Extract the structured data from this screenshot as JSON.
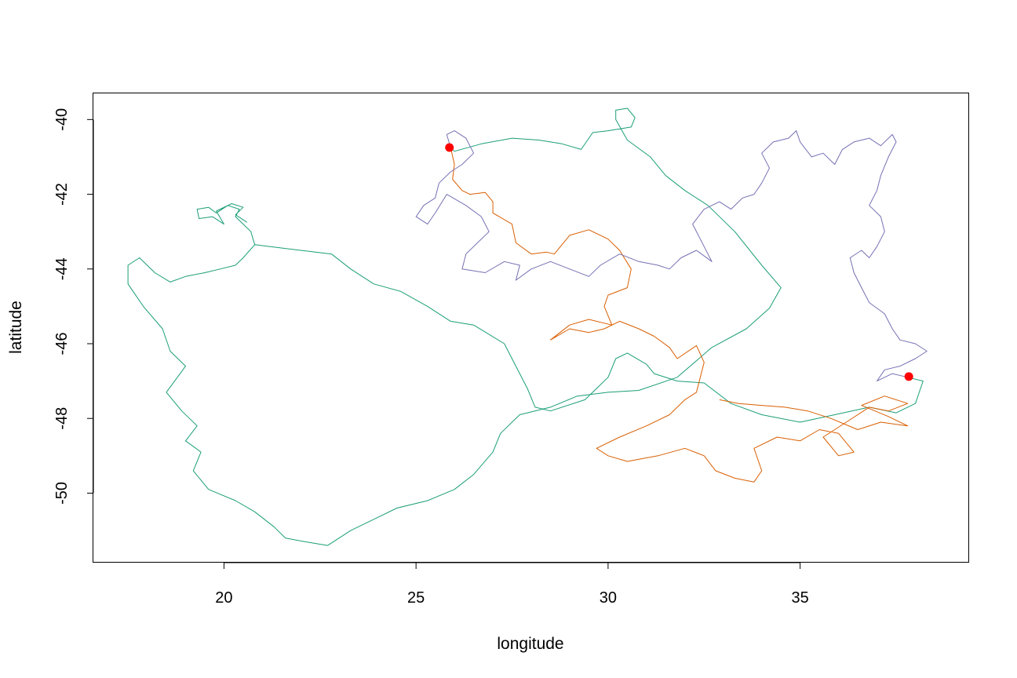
{
  "chart_data": {
    "type": "line",
    "title": "",
    "xlabel": "longitude",
    "ylabel": "latitude",
    "xlim": [
      16.6,
      39.4
    ],
    "ylim": [
      -51.86,
      -39.3
    ],
    "x_ticks": [
      20,
      25,
      30,
      35
    ],
    "y_ticks": [
      -40,
      -42,
      -44,
      -46,
      -48,
      -50
    ],
    "grid": false,
    "legend": "none",
    "colors": {
      "green": "#1b9e77",
      "orange": "#d95f02",
      "purple": "#7570b3",
      "points": "#ff0000"
    },
    "series": [
      {
        "color": "#1b9e77",
        "values": [
          [
            37.8,
            -46.9
          ],
          [
            38.2,
            -47.0
          ],
          [
            38.0,
            -47.6
          ],
          [
            37.5,
            -47.85
          ],
          [
            36.8,
            -47.7
          ],
          [
            35.9,
            -47.9
          ],
          [
            35.0,
            -48.1
          ],
          [
            34.0,
            -47.9
          ],
          [
            33.2,
            -47.6
          ],
          [
            32.5,
            -47.05
          ],
          [
            31.8,
            -47.0
          ],
          [
            31.2,
            -46.8
          ],
          [
            31.0,
            -46.55
          ],
          [
            30.5,
            -46.25
          ],
          [
            30.2,
            -46.4
          ],
          [
            30.0,
            -46.9
          ],
          [
            29.4,
            -47.5
          ],
          [
            28.5,
            -47.8
          ],
          [
            28.1,
            -47.7
          ],
          [
            27.9,
            -47.2
          ],
          [
            27.6,
            -46.6
          ],
          [
            27.3,
            -46.0
          ],
          [
            26.5,
            -45.5
          ],
          [
            25.9,
            -45.4
          ],
          [
            25.3,
            -45.0
          ],
          [
            24.6,
            -44.6
          ],
          [
            23.9,
            -44.4
          ],
          [
            23.3,
            -44.0
          ],
          [
            22.8,
            -43.6
          ],
          [
            22.0,
            -43.5
          ],
          [
            21.2,
            -43.4
          ],
          [
            20.8,
            -43.35
          ],
          [
            20.5,
            -43.7
          ],
          [
            20.3,
            -43.9
          ],
          [
            19.9,
            -44.0
          ],
          [
            19.5,
            -44.1
          ],
          [
            19.0,
            -44.2
          ],
          [
            18.6,
            -44.35
          ],
          [
            18.2,
            -44.1
          ],
          [
            17.8,
            -43.7
          ],
          [
            17.5,
            -43.9
          ],
          [
            17.5,
            -44.4
          ],
          [
            17.9,
            -45.0
          ],
          [
            18.4,
            -45.6
          ],
          [
            18.6,
            -46.2
          ],
          [
            19.0,
            -46.6
          ],
          [
            18.5,
            -47.3
          ],
          [
            18.9,
            -47.8
          ],
          [
            19.3,
            -48.2
          ],
          [
            19.0,
            -48.6
          ],
          [
            19.4,
            -48.9
          ],
          [
            19.2,
            -49.4
          ],
          [
            19.6,
            -49.9
          ],
          [
            20.3,
            -50.2
          ],
          [
            20.8,
            -50.5
          ],
          [
            21.3,
            -50.9
          ],
          [
            21.6,
            -51.2
          ],
          [
            22.1,
            -51.3
          ],
          [
            22.7,
            -51.4
          ],
          [
            23.3,
            -51.0
          ],
          [
            23.9,
            -50.7
          ],
          [
            24.5,
            -50.4
          ],
          [
            25.3,
            -50.2
          ],
          [
            26.0,
            -49.9
          ],
          [
            26.5,
            -49.5
          ],
          [
            27.0,
            -48.9
          ],
          [
            27.2,
            -48.4
          ],
          [
            27.7,
            -47.9
          ],
          [
            28.5,
            -47.7
          ],
          [
            29.2,
            -47.4
          ],
          [
            30.0,
            -47.3
          ],
          [
            30.8,
            -47.25
          ],
          [
            31.8,
            -46.9
          ],
          [
            32.7,
            -46.1
          ],
          [
            33.6,
            -45.6
          ],
          [
            34.2,
            -45.05
          ],
          [
            34.5,
            -44.5
          ],
          [
            34.0,
            -43.9
          ],
          [
            33.3,
            -43.0
          ],
          [
            32.6,
            -42.3
          ],
          [
            32.0,
            -41.9
          ],
          [
            31.5,
            -41.5
          ],
          [
            31.1,
            -41.0
          ],
          [
            30.5,
            -40.55
          ],
          [
            30.2,
            -40.0
          ],
          [
            30.2,
            -39.75
          ],
          [
            30.5,
            -39.7
          ],
          [
            30.7,
            -39.95
          ],
          [
            30.6,
            -40.2
          ],
          [
            30.0,
            -40.3
          ],
          [
            29.6,
            -40.35
          ],
          [
            29.3,
            -40.8
          ],
          [
            28.8,
            -40.65
          ],
          [
            28.2,
            -40.55
          ],
          [
            27.5,
            -40.5
          ],
          [
            26.7,
            -40.65
          ],
          [
            26.0,
            -40.85
          ],
          [
            25.9,
            -40.75
          ]
        ]
      },
      {
        "color": "#1b9e77",
        "values": [
          [
            20.8,
            -43.35
          ],
          [
            20.7,
            -43.0
          ],
          [
            20.5,
            -42.8
          ],
          [
            20.3,
            -42.6
          ],
          [
            20.4,
            -42.4
          ],
          [
            20.1,
            -42.3
          ],
          [
            19.8,
            -42.5
          ],
          [
            19.6,
            -42.35
          ],
          [
            19.3,
            -42.4
          ],
          [
            19.35,
            -42.65
          ],
          [
            19.7,
            -42.6
          ],
          [
            20.0,
            -42.8
          ],
          [
            19.8,
            -42.45
          ],
          [
            20.2,
            -42.25
          ],
          [
            20.5,
            -42.35
          ],
          [
            20.3,
            -42.55
          ],
          [
            20.6,
            -42.75
          ]
        ]
      },
      {
        "color": "#d95f02",
        "values": [
          [
            25.9,
            -40.75
          ],
          [
            26.0,
            -41.2
          ],
          [
            25.95,
            -41.6
          ],
          [
            26.2,
            -41.9
          ],
          [
            26.4,
            -42.0
          ],
          [
            26.8,
            -41.95
          ],
          [
            27.0,
            -42.2
          ],
          [
            27.0,
            -42.5
          ],
          [
            27.5,
            -42.8
          ],
          [
            27.6,
            -43.3
          ],
          [
            28.0,
            -43.6
          ],
          [
            28.4,
            -43.55
          ],
          [
            28.6,
            -43.6
          ],
          [
            29.0,
            -43.1
          ],
          [
            29.5,
            -42.95
          ],
          [
            30.0,
            -43.2
          ],
          [
            30.3,
            -43.5
          ],
          [
            30.6,
            -44.0
          ],
          [
            30.5,
            -44.5
          ],
          [
            30.0,
            -44.7
          ],
          [
            29.9,
            -45.0
          ],
          [
            30.1,
            -45.5
          ],
          [
            29.5,
            -45.35
          ],
          [
            29.0,
            -45.5
          ],
          [
            28.5,
            -45.9
          ],
          [
            29.0,
            -45.6
          ],
          [
            29.5,
            -45.7
          ],
          [
            29.9,
            -45.6
          ],
          [
            30.3,
            -45.4
          ],
          [
            30.8,
            -45.6
          ],
          [
            31.2,
            -45.8
          ],
          [
            31.6,
            -46.1
          ],
          [
            31.8,
            -46.4
          ],
          [
            32.3,
            -46.05
          ],
          [
            32.5,
            -46.5
          ],
          [
            32.3,
            -47.3
          ],
          [
            32.0,
            -47.5
          ],
          [
            31.6,
            -47.9
          ],
          [
            31.0,
            -48.2
          ],
          [
            30.3,
            -48.5
          ],
          [
            29.7,
            -48.8
          ],
          [
            30.0,
            -49.0
          ],
          [
            30.5,
            -49.15
          ],
          [
            31.3,
            -49.0
          ],
          [
            32.0,
            -48.8
          ],
          [
            32.5,
            -49.0
          ],
          [
            32.8,
            -49.4
          ],
          [
            33.3,
            -49.6
          ],
          [
            33.8,
            -49.7
          ],
          [
            34.0,
            -49.4
          ],
          [
            33.8,
            -48.8
          ],
          [
            34.4,
            -48.5
          ],
          [
            35.0,
            -48.6
          ],
          [
            35.5,
            -48.3
          ],
          [
            36.0,
            -48.4
          ],
          [
            36.4,
            -48.9
          ],
          [
            36.0,
            -49.0
          ],
          [
            35.6,
            -48.5
          ],
          [
            36.2,
            -48.1
          ],
          [
            36.8,
            -47.7
          ],
          [
            37.3,
            -47.8
          ],
          [
            37.8,
            -47.6
          ],
          [
            37.2,
            -47.4
          ],
          [
            36.6,
            -47.65
          ],
          [
            37.3,
            -47.95
          ],
          [
            37.8,
            -48.2
          ],
          [
            37.1,
            -48.1
          ],
          [
            36.5,
            -48.3
          ],
          [
            35.8,
            -48.0
          ],
          [
            35.2,
            -47.8
          ],
          [
            34.6,
            -47.7
          ],
          [
            34.0,
            -47.65
          ],
          [
            33.4,
            -47.6
          ],
          [
            32.9,
            -47.5
          ]
        ]
      },
      {
        "color": "#7570b3",
        "values": [
          [
            25.9,
            -40.75
          ],
          [
            25.8,
            -40.4
          ],
          [
            26.0,
            -40.3
          ],
          [
            26.3,
            -40.5
          ],
          [
            26.5,
            -40.9
          ],
          [
            26.2,
            -41.2
          ],
          [
            25.9,
            -41.4
          ],
          [
            25.6,
            -41.7
          ],
          [
            25.5,
            -42.1
          ],
          [
            25.2,
            -42.3
          ],
          [
            25.0,
            -42.6
          ],
          [
            25.3,
            -42.8
          ],
          [
            25.5,
            -42.5
          ],
          [
            25.8,
            -42.0
          ],
          [
            26.3,
            -42.3
          ],
          [
            26.7,
            -42.6
          ],
          [
            26.9,
            -43.0
          ],
          [
            26.6,
            -43.3
          ],
          [
            26.3,
            -43.6
          ],
          [
            26.2,
            -44.0
          ],
          [
            26.8,
            -44.1
          ],
          [
            27.3,
            -43.8
          ],
          [
            27.7,
            -43.9
          ],
          [
            27.6,
            -44.3
          ],
          [
            28.0,
            -44.0
          ],
          [
            28.5,
            -43.8
          ],
          [
            29.0,
            -44.0
          ],
          [
            29.5,
            -44.2
          ],
          [
            29.8,
            -43.9
          ],
          [
            30.3,
            -43.6
          ],
          [
            30.8,
            -43.8
          ],
          [
            31.3,
            -43.9
          ],
          [
            31.6,
            -44.0
          ],
          [
            31.9,
            -43.7
          ],
          [
            32.3,
            -43.5
          ],
          [
            32.7,
            -43.8
          ],
          [
            32.4,
            -43.2
          ],
          [
            32.2,
            -42.8
          ],
          [
            32.5,
            -42.4
          ],
          [
            32.9,
            -42.2
          ],
          [
            33.2,
            -42.4
          ],
          [
            33.5,
            -42.1
          ],
          [
            33.8,
            -42.0
          ],
          [
            34.0,
            -41.7
          ],
          [
            34.2,
            -41.3
          ],
          [
            34.0,
            -40.9
          ],
          [
            34.3,
            -40.6
          ],
          [
            34.7,
            -40.5
          ],
          [
            34.9,
            -40.3
          ],
          [
            35.0,
            -40.6
          ],
          [
            35.3,
            -41.0
          ],
          [
            35.6,
            -40.9
          ],
          [
            35.9,
            -41.2
          ],
          [
            36.1,
            -40.8
          ],
          [
            36.4,
            -40.6
          ],
          [
            36.8,
            -40.5
          ],
          [
            37.1,
            -40.7
          ],
          [
            37.4,
            -40.4
          ],
          [
            37.5,
            -40.6
          ],
          [
            37.3,
            -41.0
          ],
          [
            37.1,
            -41.5
          ],
          [
            37.0,
            -41.9
          ],
          [
            36.8,
            -42.3
          ],
          [
            37.1,
            -42.6
          ],
          [
            37.2,
            -43.0
          ],
          [
            37.0,
            -43.4
          ],
          [
            36.8,
            -43.7
          ],
          [
            36.6,
            -43.5
          ],
          [
            36.3,
            -43.7
          ],
          [
            36.4,
            -44.1
          ],
          [
            36.6,
            -44.5
          ],
          [
            36.8,
            -44.9
          ],
          [
            37.2,
            -45.2
          ],
          [
            37.4,
            -45.6
          ],
          [
            37.6,
            -45.9
          ],
          [
            38.0,
            -46.0
          ],
          [
            38.3,
            -46.2
          ],
          [
            38.0,
            -46.4
          ],
          [
            37.6,
            -46.6
          ],
          [
            37.2,
            -46.7
          ],
          [
            37.0,
            -47.0
          ],
          [
            37.4,
            -46.8
          ],
          [
            37.8,
            -46.9
          ]
        ]
      }
    ],
    "points": [
      {
        "x": 25.87,
        "y": -40.75
      },
      {
        "x": 37.83,
        "y": -46.88
      }
    ]
  }
}
